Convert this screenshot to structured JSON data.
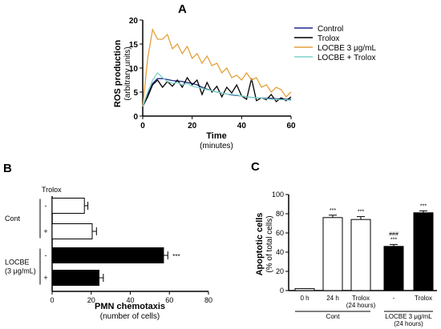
{
  "panels": {
    "a": "A",
    "b": "B",
    "c": "C"
  },
  "chart_data": [
    {
      "panel": "A",
      "type": "line",
      "ylabel": "ROS production",
      "ylabel_sub": "(arbitrary units)",
      "xlabel": "Time",
      "xlabel_sub": "(minutes)",
      "xlim": [
        0,
        60
      ],
      "ylim": [
        0,
        20
      ],
      "xticks": [
        0,
        20,
        40,
        60
      ],
      "yticks": [
        0,
        5,
        10,
        15,
        20
      ],
      "legend_position": "top-right",
      "x": [
        0,
        2,
        4,
        6,
        8,
        10,
        12,
        14,
        16,
        18,
        20,
        22,
        24,
        26,
        28,
        30,
        32,
        34,
        36,
        38,
        40,
        42,
        44,
        46,
        48,
        50,
        52,
        54,
        56,
        58,
        60
      ],
      "series": [
        {
          "name": "Control",
          "color": "#1f2a8c",
          "values": [
            2.0,
            4.5,
            6.8,
            7.8,
            7.8,
            7.6,
            7.4,
            7.3,
            7.2,
            7.0,
            6.8,
            6.5,
            6.0,
            5.6,
            5.3,
            5.0,
            4.8,
            4.6,
            4.4,
            4.3,
            4.2,
            4.0,
            3.9,
            3.8,
            3.8,
            3.7,
            3.7,
            3.6,
            3.6,
            3.5,
            3.5
          ]
        },
        {
          "name": "Trolox",
          "color": "#000000",
          "values": [
            2.0,
            4.0,
            6.5,
            7.5,
            6.0,
            7.2,
            6.2,
            7.5,
            6.0,
            8.0,
            6.5,
            7.5,
            4.5,
            7.0,
            5.0,
            6.2,
            4.0,
            6.0,
            4.8,
            6.5,
            4.2,
            3.5,
            7.8,
            3.2,
            3.8,
            3.4,
            4.5,
            3.0,
            3.8,
            3.2,
            4.0
          ]
        },
        {
          "name": "LOCBE 3 μg/mL",
          "color": "#e3a13b",
          "values": [
            2.0,
            12.0,
            18.0,
            16.0,
            16.0,
            17.0,
            14.0,
            15.0,
            13.0,
            14.5,
            12.0,
            13.0,
            11.0,
            12.5,
            10.5,
            11.0,
            9.0,
            10.0,
            8.0,
            8.5,
            7.5,
            9.0,
            7.5,
            8.0,
            6.0,
            6.5,
            5.0,
            6.0,
            5.5,
            4.0,
            5.0
          ]
        },
        {
          "name": "LOCBE + Trolox",
          "color": "#7fd4c8",
          "values": [
            2.0,
            5.0,
            7.5,
            9.0,
            8.0,
            7.2,
            6.8,
            7.0,
            6.5,
            6.8,
            6.2,
            6.0,
            5.8,
            5.5,
            5.3,
            5.0,
            4.8,
            4.6,
            4.5,
            4.4,
            4.2,
            4.0,
            3.9,
            3.8,
            3.8,
            3.6,
            3.5,
            3.5,
            3.4,
            3.4,
            3.3
          ]
        }
      ]
    },
    {
      "panel": "B",
      "type": "bar",
      "orientation": "horizontal",
      "treatment_header": "Trolox",
      "xlabel": "PMN chemotaxis",
      "xlabel_sub": "(number of cells)",
      "xlim": [
        0,
        80
      ],
      "xticks": [
        0,
        20,
        40,
        60,
        80
      ],
      "groups": [
        {
          "label": [
            "Cont"
          ],
          "rows": [
            0,
            1
          ]
        },
        {
          "label": [
            "LOCBE",
            "(3 μg/mL)"
          ],
          "rows": [
            2,
            3
          ]
        }
      ],
      "bars": [
        {
          "trolox": "-",
          "value": 16.5,
          "error": 1.8,
          "fill": "#ffffff",
          "annotation": ""
        },
        {
          "trolox": "+",
          "value": 20.5,
          "error": 2.2,
          "fill": "#ffffff",
          "annotation": ""
        },
        {
          "trolox": "-",
          "value": 57.0,
          "error": 2.2,
          "fill": "#000000",
          "annotation": "***"
        },
        {
          "trolox": "+",
          "value": 24.0,
          "error": 2.2,
          "fill": "#000000",
          "annotation": ""
        }
      ]
    },
    {
      "panel": "C",
      "type": "bar",
      "orientation": "vertical",
      "ylabel": "Apoptotic cells",
      "ylabel_sub": "(% of total cells)",
      "ylim": [
        0,
        100
      ],
      "yticks": [
        0,
        20,
        40,
        60,
        80,
        100
      ],
      "categories": [
        [
          "0 h"
        ],
        [
          "24 h"
        ],
        [
          "Trolox",
          "(24 hours)"
        ],
        [
          "-"
        ],
        [
          "Trolox"
        ]
      ],
      "groups": [
        {
          "label": [
            "Cont"
          ],
          "bars": [
            0,
            1,
            2
          ]
        },
        {
          "label": [
            "LOCBE 3 μg/mL",
            "(24 hours)"
          ],
          "bars": [
            3,
            4
          ]
        }
      ],
      "bars": [
        {
          "value": 2.0,
          "error": 0.0,
          "fill": "#ffffff",
          "annotation": []
        },
        {
          "value": 76.0,
          "error": 2.5,
          "fill": "#ffffff",
          "annotation": [
            "***"
          ]
        },
        {
          "value": 74.0,
          "error": 3.0,
          "fill": "#ffffff",
          "annotation": [
            "***"
          ]
        },
        {
          "value": 46.0,
          "error": 2.0,
          "fill": "#000000",
          "annotation": [
            "###",
            "***"
          ]
        },
        {
          "value": 81.0,
          "error": 2.0,
          "fill": "#000000",
          "annotation": [
            "***"
          ]
        }
      ]
    }
  ]
}
